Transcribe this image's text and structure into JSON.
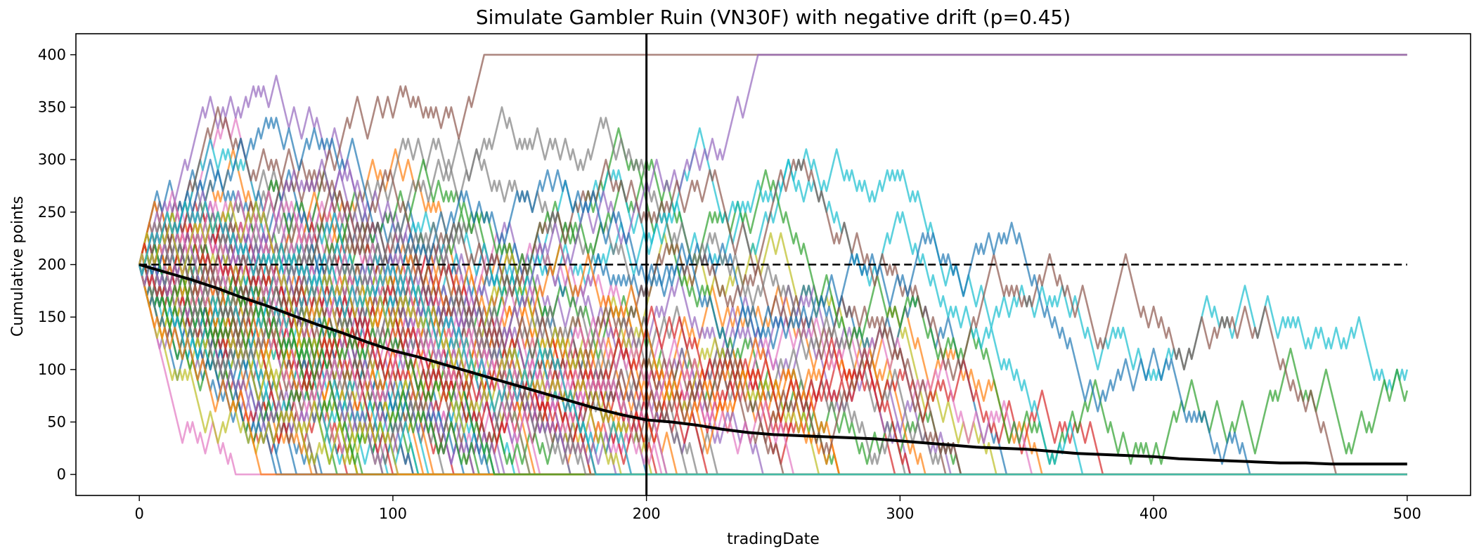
{
  "chart_data": {
    "type": "line",
    "title": "Simulate Gambler Ruin (VN30F) with negative drift (p=0.45)",
    "xlabel": "tradingDate",
    "ylabel": "Cumulative points",
    "xlim": [
      -25,
      525
    ],
    "ylim": [
      -20,
      420
    ],
    "xticks": [
      0,
      100,
      200,
      300,
      400,
      500
    ],
    "yticks": [
      0,
      50,
      100,
      150,
      200,
      250,
      300,
      350,
      400
    ],
    "grid": false,
    "legend": "none",
    "simulation": {
      "paths": 100,
      "steps": 500,
      "start": 200,
      "step_size": 10,
      "upper_barrier": 400,
      "lower_barrier": 0,
      "p_up": 0.45
    },
    "palette": [
      "#1f77b4",
      "#ff7f0e",
      "#2ca02c",
      "#d62728",
      "#9467bd",
      "#8c564b",
      "#e377c2",
      "#7f7f7f",
      "#bcbd22",
      "#17becf"
    ],
    "reference_lines": {
      "horizontal_dashed_y": 200,
      "vertical_solid_x": 200
    },
    "mean_path": {
      "x": [
        0,
        10,
        20,
        30,
        40,
        50,
        60,
        70,
        80,
        90,
        100,
        110,
        120,
        130,
        140,
        150,
        160,
        170,
        180,
        190,
        200,
        210,
        220,
        230,
        240,
        250,
        260,
        270,
        280,
        290,
        300,
        310,
        320,
        330,
        340,
        350,
        360,
        370,
        380,
        390,
        400,
        410,
        420,
        430,
        440,
        450,
        460,
        470,
        480,
        490,
        500
      ],
      "y": [
        200,
        193,
        186,
        178,
        169,
        161,
        152,
        143,
        135,
        126,
        118,
        112,
        105,
        98,
        91,
        84,
        77,
        70,
        63,
        57,
        52,
        50,
        47,
        43,
        40,
        38,
        37,
        36,
        35,
        34,
        32,
        30,
        28,
        26,
        25,
        24,
        22,
        20,
        19,
        18,
        17,
        15,
        14,
        13,
        12,
        11,
        11,
        10,
        10,
        10,
        10
      ]
    }
  }
}
